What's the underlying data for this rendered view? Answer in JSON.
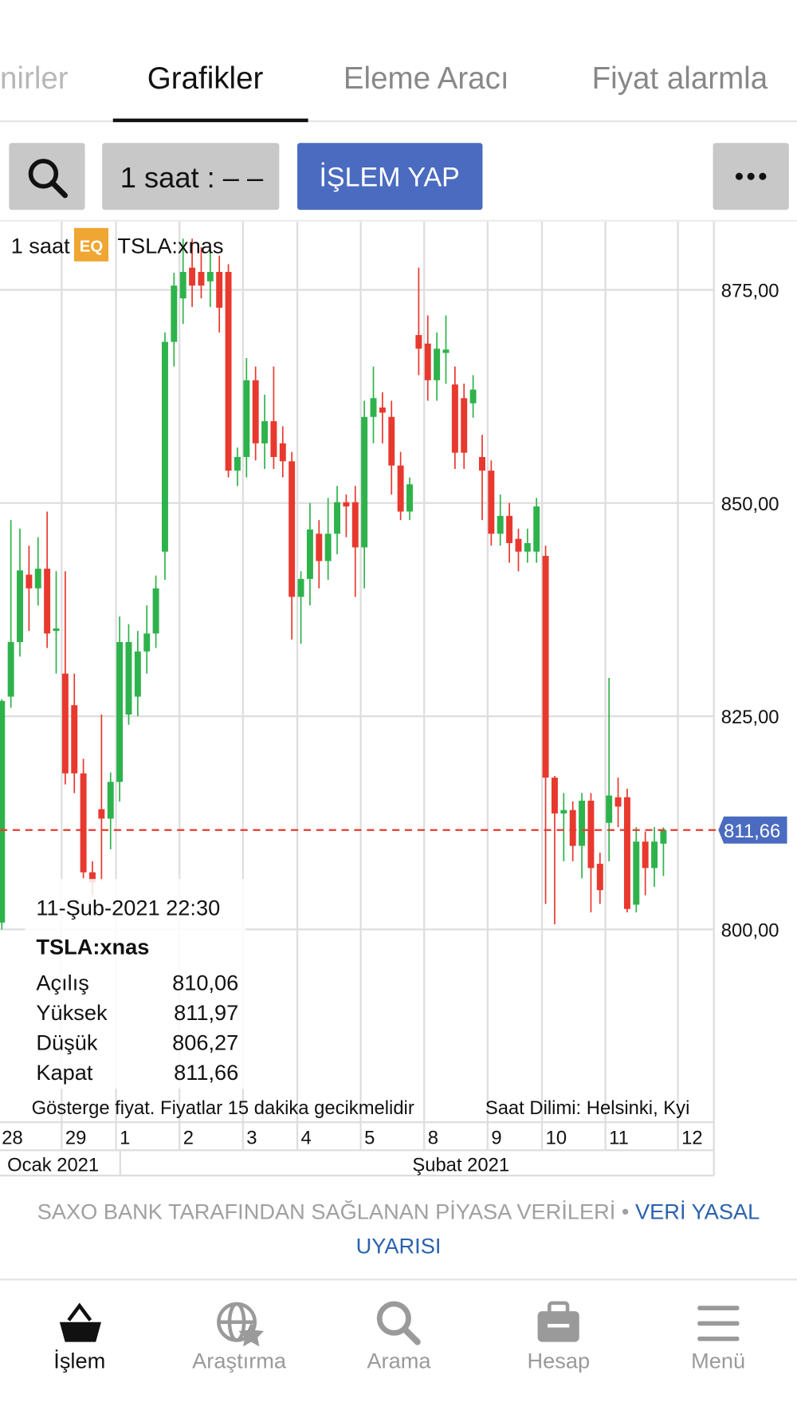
{
  "tabs": [
    "nirler",
    "Grafikler",
    "Eleme Aracı",
    "Fiyat alarmla"
  ],
  "toolbar": {
    "interval": "1 saat : – –",
    "trade_button": "İŞLEM YAP"
  },
  "chart_data": {
    "type": "candlestick",
    "interval_label": "1 saat",
    "badge": "EQ",
    "symbol": "TSLA:xnas",
    "up_color": "#2eb34c",
    "down_color": "#e8392f",
    "open": [
      800.8,
      827.3,
      833.7,
      841.6,
      840,
      842.3,
      835,
      830,
      826.3,
      818.3,
      806.7,
      814.1,
      813,
      817.3,
      825.2,
      827.3,
      832.6,
      834.7,
      844.3,
      868.9,
      874,
      877.6,
      877.1,
      876,
      877.1,
      877.1,
      853.8,
      855.4,
      864.4,
      857,
      859.6,
      857,
      854.9,
      839,
      841.1,
      846.4,
      843.2,
      846.4,
      850.1,
      850.1,
      844.8,
      860.1,
      861.2,
      860.1,
      854.4,
      849,
      869.7,
      868.7,
      864.4,
      867.6,
      863.9,
      862.3,
      861.7,
      855.4,
      853.8,
      846.4,
      848.5,
      845.8,
      844.3,
      844.3,
      843.8,
      817.8,
      813.6,
      814,
      809.8,
      815.1,
      807.7,
      812.5,
      815.5,
      815.5,
      802.9,
      810.3,
      807.2,
      810.06
    ],
    "high": [
      827,
      848,
      847,
      845,
      846,
      849,
      842,
      842,
      830,
      820,
      808,
      825.2,
      818.4,
      836.7,
      835.8,
      835,
      838,
      841.5,
      870,
      877,
      881,
      881,
      880,
      880,
      879,
      878,
      856.5,
      867,
      866,
      862.7,
      866,
      859,
      856,
      842,
      850,
      848,
      850.6,
      852,
      851,
      852,
      862,
      866,
      863,
      862,
      856,
      853,
      877.6,
      872,
      870,
      872,
      866,
      864,
      865,
      858,
      855,
      851,
      850,
      847,
      847,
      850.6,
      845,
      818,
      816,
      815,
      816,
      816,
      809,
      829.5,
      817.8,
      816.5,
      812,
      811.5,
      812,
      811.97
    ],
    "low": [
      800,
      826,
      832,
      835,
      838,
      833,
      830,
      817,
      816,
      806,
      804,
      805.7,
      809.4,
      815,
      824,
      825,
      830,
      833,
      841,
      866,
      871,
      873,
      874,
      873,
      870,
      853,
      852,
      853,
      855,
      854,
      854,
      853,
      834,
      833.5,
      838,
      840,
      841,
      844,
      846,
      839,
      840,
      857,
      857,
      851,
      848,
      848,
      865,
      862,
      862,
      864,
      854,
      854,
      860,
      848,
      845,
      845,
      843,
      842,
      843,
      843,
      803,
      800.6,
      808,
      808,
      806,
      802,
      803,
      808,
      812,
      802,
      802,
      804,
      805,
      806.27
    ],
    "close": [
      826.8,
      833.7,
      842.1,
      840,
      842.3,
      834.7,
      835.3,
      818.3,
      818.3,
      806.7,
      805.5,
      813,
      817.3,
      833.7,
      833.7,
      832.6,
      834.7,
      840,
      868.9,
      875.5,
      877.1,
      875.5,
      875.5,
      877.1,
      872.9,
      853.8,
      855.4,
      864.4,
      857,
      859.6,
      855.4,
      854.9,
      839,
      841.1,
      846.9,
      843.2,
      846.4,
      850.1,
      849.6,
      844.8,
      860.1,
      862.3,
      860.6,
      854.4,
      849,
      852.2,
      868.1,
      864.4,
      868.1,
      868,
      855.9,
      855.9,
      863.3,
      853.8,
      846.4,
      848.5,
      845.3,
      844.3,
      845.3,
      849.6,
      817.8,
      813.6,
      814,
      809.8,
      815.1,
      807.2,
      804.6,
      815.7,
      814.4,
      802.4,
      810.3,
      807.2,
      810.3,
      811.66
    ],
    "ylim": [
      777.5,
      883
    ],
    "yticks": [
      {
        "value": 800,
        "label": "800,00"
      },
      {
        "value": 825,
        "label": "825,00"
      },
      {
        "value": 850,
        "label": "850,00"
      },
      {
        "value": 875,
        "label": "875,00"
      }
    ],
    "xticks": [
      {
        "value": 0,
        "label": "28"
      },
      {
        "value": 7,
        "label": "29"
      },
      {
        "value": 13,
        "label": "1"
      },
      {
        "value": 20,
        "label": "2"
      },
      {
        "value": 27,
        "label": "3"
      },
      {
        "value": 33,
        "label": "4"
      },
      {
        "value": 40,
        "label": "5"
      },
      {
        "value": 47,
        "label": "8"
      },
      {
        "value": 54,
        "label": "9"
      },
      {
        "value": 60,
        "label": "10"
      },
      {
        "value": 67,
        "label": "11"
      },
      {
        "value": 75,
        "label": "12"
      }
    ],
    "months": [
      "Ocak 2021",
      "Şubat 2021"
    ],
    "last_price": {
      "value": 811.66,
      "label": "811,66"
    },
    "grid": true,
    "tooltip": {
      "date": "11-Şub-2021 22:30",
      "symbol": "TSLA:xnas",
      "rows": [
        {
          "label": "Açılış",
          "value": "810,06"
        },
        {
          "label": "Yüksek",
          "value": "811,97"
        },
        {
          "label": "Düşük",
          "value": "806,27"
        },
        {
          "label": "Kapat",
          "value": "811,66"
        }
      ]
    },
    "note": "Gösterge fiyat. Fiyatlar 15 dakika gecikmelidir",
    "timezone": "Saat Dilimi: Helsinki, Kyi"
  },
  "attribution": {
    "text": "SAXO BANK TARAFINDAN SAĞLANAN PİYASA VERİLERİ •",
    "link_line1": "VERİ YASAL",
    "link_line2": "UYARISI"
  },
  "nav": [
    "İşlem",
    "Araştırma",
    "Arama",
    "Hesap",
    "Menü"
  ]
}
